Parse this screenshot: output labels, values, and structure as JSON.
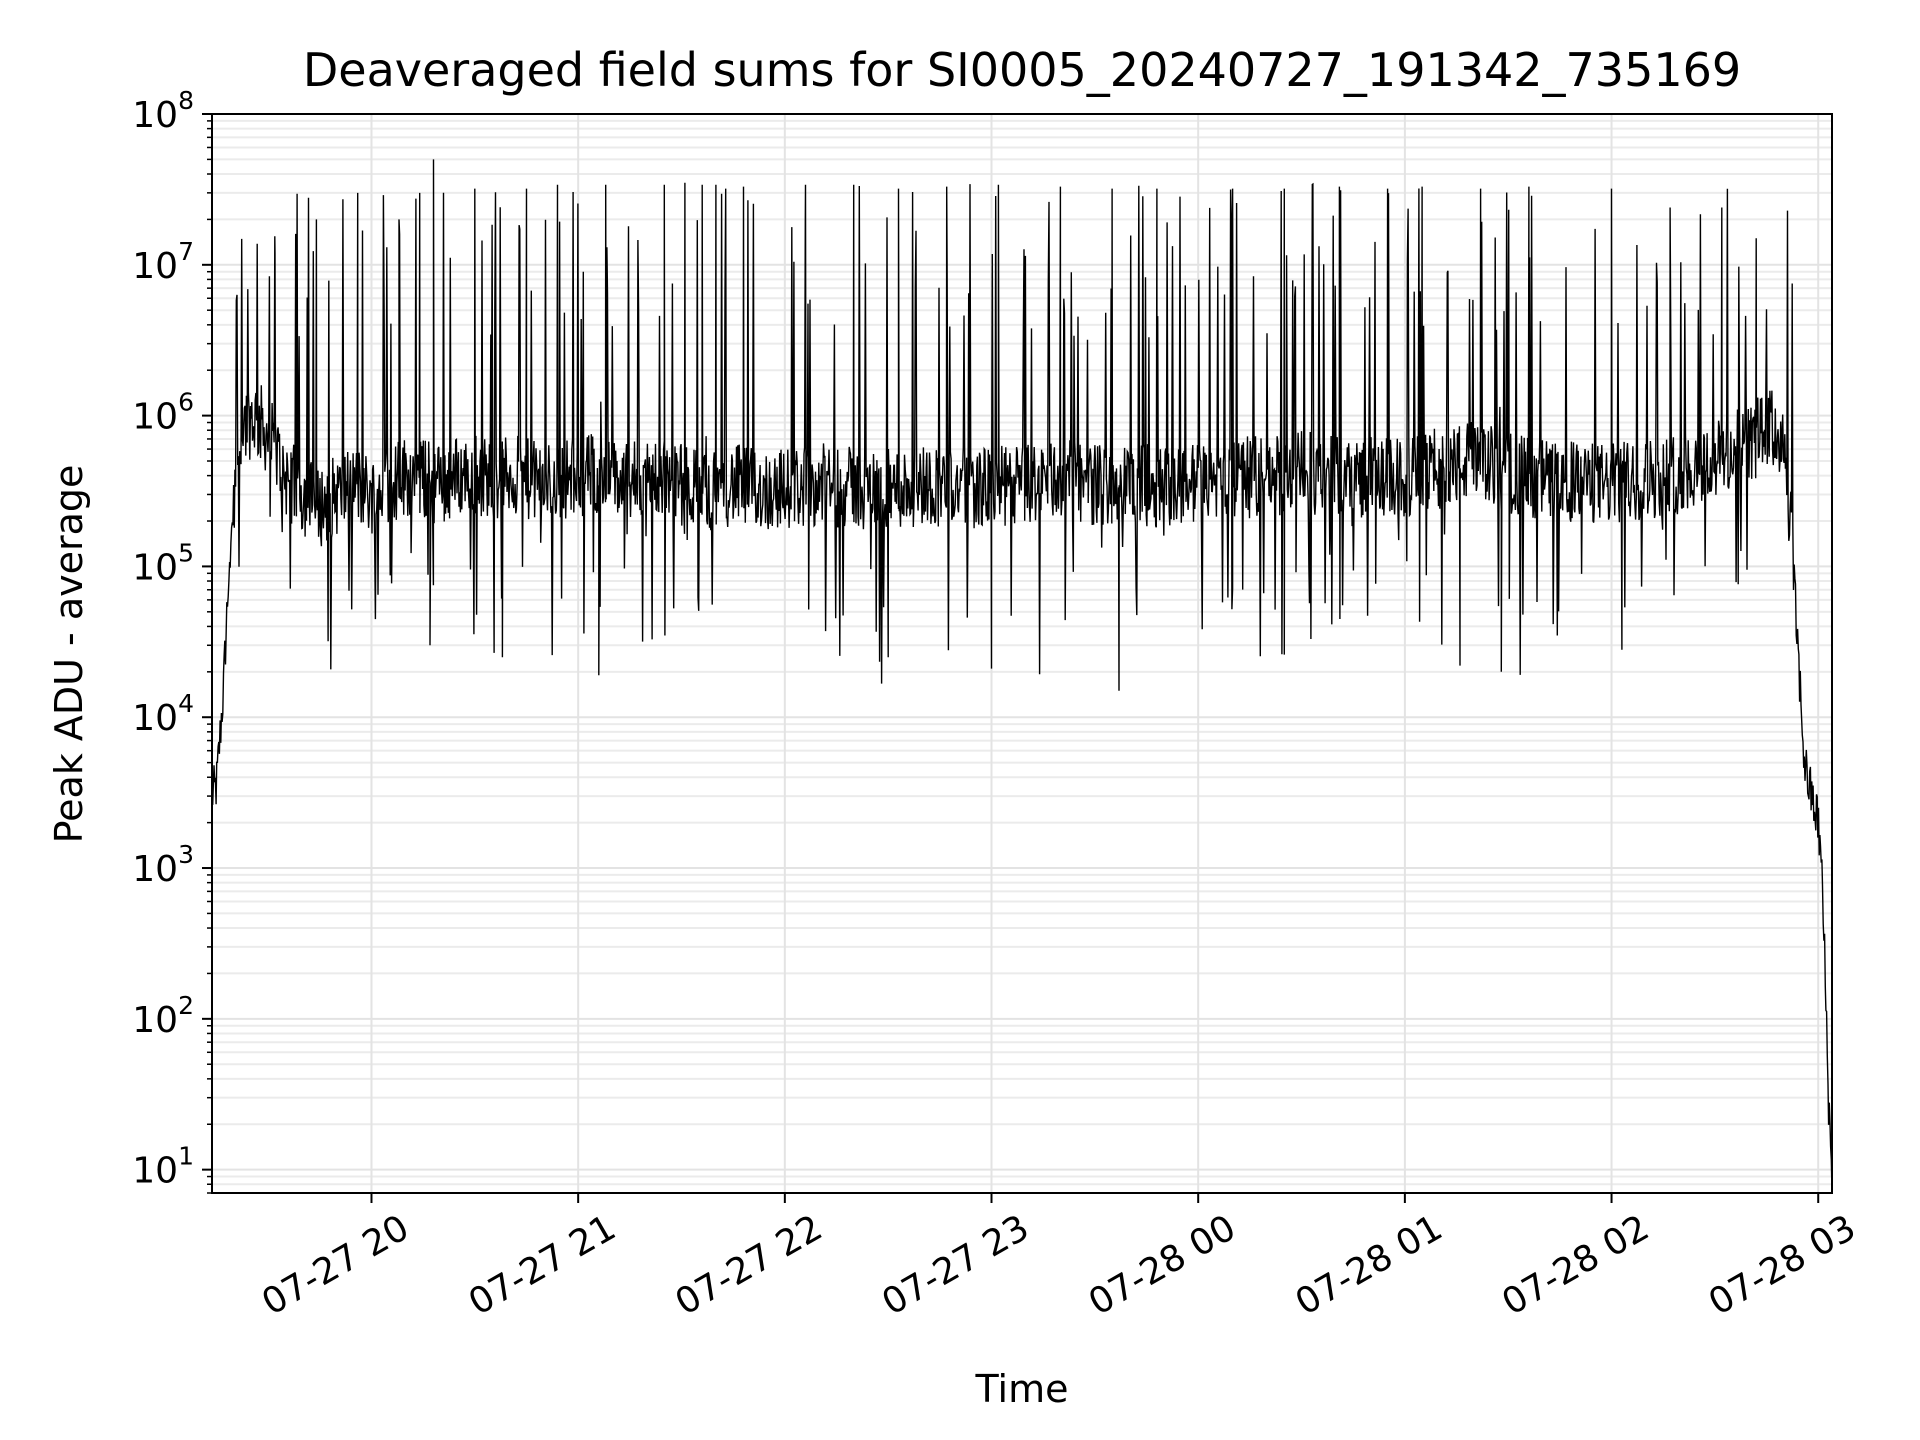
{
  "chart_data": {
    "type": "line",
    "title": "Deaveraged field sums for SI0005_20240727_191342_735169",
    "xlabel": "Time",
    "ylabel": "Peak ADU - average",
    "yscale": "log",
    "ylim": [
      7,
      100000000
    ],
    "xlim": [
      "2024-07-27 19:13:42",
      "2024-07-28 03:04:00"
    ],
    "grid": true,
    "legend": "none",
    "line_color": "#000000",
    "x_ticks": [
      {
        "value": "2024-07-27 20:00",
        "label": "07-27 20"
      },
      {
        "value": "2024-07-27 21:00",
        "label": "07-27 21"
      },
      {
        "value": "2024-07-27 22:00",
        "label": "07-27 22"
      },
      {
        "value": "2024-07-27 23:00",
        "label": "07-27 23"
      },
      {
        "value": "2024-07-28 00:00",
        "label": "07-28 00"
      },
      {
        "value": "2024-07-28 01:00",
        "label": "07-28 01"
      },
      {
        "value": "2024-07-28 02:00",
        "label": "07-28 02"
      },
      {
        "value": "2024-07-28 03:00",
        "label": "07-28 03"
      }
    ],
    "y_ticks": [
      {
        "value": 10,
        "base": "10",
        "exp": "1"
      },
      {
        "value": 100,
        "base": "10",
        "exp": "2"
      },
      {
        "value": 1000,
        "base": "10",
        "exp": "3"
      },
      {
        "value": 10000,
        "base": "10",
        "exp": "4"
      },
      {
        "value": 100000,
        "base": "10",
        "exp": "5"
      },
      {
        "value": 1000000,
        "base": "10",
        "exp": "6"
      },
      {
        "value": 10000000,
        "base": "10",
        "exp": "7"
      },
      {
        "value": 100000000,
        "base": "10",
        "exp": "8"
      }
    ],
    "series": [
      {
        "x": [
          "2024-07-27 19:13:42",
          "2024-07-27 19:15",
          "2024-07-27 19:17",
          "2024-07-27 19:19",
          "2024-07-27 19:21",
          "2024-07-27 19:23",
          "2024-07-27 19:26",
          "2024-07-27 19:29",
          "2024-07-27 19:32",
          "2024-07-27 19:35",
          "2024-07-27 19:40",
          "2024-07-27 19:45",
          "2024-07-27 19:50",
          "2024-07-27 19:55",
          "2024-07-27 20:00",
          "2024-07-27 20:05",
          "2024-07-27 20:10",
          "2024-07-27 20:15",
          "2024-07-27 20:20",
          "2024-07-27 20:25",
          "2024-07-27 20:30",
          "2024-07-27 20:35",
          "2024-07-27 20:40",
          "2024-07-27 20:45",
          "2024-07-27 20:50",
          "2024-07-27 20:55",
          "2024-07-27 21:00",
          "2024-07-27 21:05",
          "2024-07-27 21:10",
          "2024-07-27 21:15",
          "2024-07-27 21:20",
          "2024-07-27 21:25",
          "2024-07-27 21:30",
          "2024-07-27 21:35",
          "2024-07-27 21:40",
          "2024-07-27 21:45",
          "2024-07-27 21:50",
          "2024-07-27 21:55",
          "2024-07-27 22:00",
          "2024-07-27 22:10",
          "2024-07-27 22:20",
          "2024-07-27 22:30",
          "2024-07-27 22:40",
          "2024-07-27 22:50",
          "2024-07-27 23:00",
          "2024-07-27 23:10",
          "2024-07-27 23:20",
          "2024-07-27 23:30",
          "2024-07-27 23:40",
          "2024-07-27 23:50",
          "2024-07-28 00:00",
          "2024-07-28 00:10",
          "2024-07-28 00:20",
          "2024-07-28 00:30",
          "2024-07-28 00:40",
          "2024-07-28 00:50",
          "2024-07-28 01:00",
          "2024-07-28 01:10",
          "2024-07-28 01:20",
          "2024-07-28 01:30",
          "2024-07-28 01:40",
          "2024-07-28 01:50",
          "2024-07-28 02:00",
          "2024-07-28 02:10",
          "2024-07-28 02:20",
          "2024-07-28 02:30",
          "2024-07-28 02:40",
          "2024-07-28 02:45",
          "2024-07-28 02:48",
          "2024-07-28 02:50",
          "2024-07-28 02:52",
          "2024-07-28 02:54",
          "2024-07-28 02:56",
          "2024-07-28 02:58",
          "2024-07-28 03:00",
          "2024-07-28 03:01",
          "2024-07-28 03:02",
          "2024-07-28 03:03",
          "2024-07-28 03:04"
        ],
        "values": [
          3000,
          3500,
          15000,
          150000,
          500000,
          900000,
          1000000,
          800000,
          600000,
          400000,
          300000,
          250000,
          300000,
          350000,
          300000,
          350000,
          400000,
          380000,
          350000,
          400000,
          420000,
          380000,
          400000,
          380000,
          350000,
          380000,
          400000,
          420000,
          380000,
          350000,
          400000,
          380000,
          350000,
          330000,
          320000,
          350000,
          330000,
          320000,
          330000,
          350000,
          330000,
          320000,
          350000,
          340000,
          330000,
          350000,
          380000,
          350000,
          350000,
          340000,
          360000,
          380000,
          400000,
          420000,
          400000,
          390000,
          380000,
          450000,
          500000,
          420000,
          380000,
          360000,
          350000,
          380000,
          420000,
          500000,
          650000,
          800000,
          800000,
          500000,
          200000,
          30000,
          5000,
          3000,
          2000,
          1000,
          200,
          30,
          8
        ],
        "peaks": [
          [
            "2024-07-27 19:32",
            12000000
          ],
          [
            "2024-07-27 19:38",
            8000000
          ],
          [
            "2024-07-27 19:44",
            20000000
          ],
          [
            "2024-07-27 19:56",
            30000000
          ],
          [
            "2024-07-27 20:08",
            20000000
          ],
          [
            "2024-07-27 20:14",
            30000000
          ],
          [
            "2024-07-27 20:18",
            50000000
          ],
          [
            "2024-07-27 20:30",
            32000000
          ],
          [
            "2024-07-27 20:45",
            32000000
          ],
          [
            "2024-07-27 20:54",
            34000000
          ],
          [
            "2024-07-27 21:08",
            34000000
          ],
          [
            "2024-07-27 21:25",
            34000000
          ],
          [
            "2024-07-27 21:31",
            35000000
          ],
          [
            "2024-07-27 21:36",
            34000000
          ],
          [
            "2024-07-27 21:40",
            34000000
          ],
          [
            "2024-07-27 21:48",
            33000000
          ],
          [
            "2024-07-27 22:06",
            34000000
          ],
          [
            "2024-07-27 22:20",
            34000000
          ],
          [
            "2024-07-27 22:33",
            32000000
          ],
          [
            "2024-07-27 22:47",
            33000000
          ],
          [
            "2024-07-27 23:02",
            34000000
          ],
          [
            "2024-07-27 23:20",
            33000000
          ],
          [
            "2024-07-27 23:35",
            32000000
          ],
          [
            "2024-07-27 23:48",
            32000000
          ],
          [
            "2024-07-28 00:10",
            32000000
          ],
          [
            "2024-07-28 00:25",
            32000000
          ],
          [
            "2024-07-28 00:41",
            33000000
          ],
          [
            "2024-07-28 00:55",
            32000000
          ],
          [
            "2024-07-28 01:05",
            33000000
          ],
          [
            "2024-07-28 01:22",
            32000000
          ],
          [
            "2024-07-28 01:36",
            33000000
          ],
          [
            "2024-07-28 02:00",
            32000000
          ],
          [
            "2024-07-28 02:17",
            24000000
          ],
          [
            "2024-07-28 02:32",
            24000000
          ],
          [
            "2024-07-28 02:42",
            15000000
          ]
        ],
        "dips": [
          [
            "2024-07-27 20:17",
            30000
          ],
          [
            "2024-07-27 20:38",
            25000
          ],
          [
            "2024-07-27 21:06",
            19000
          ],
          [
            "2024-07-27 22:30",
            25000
          ],
          [
            "2024-07-27 23:00",
            21000
          ],
          [
            "2024-07-27 23:37",
            15000
          ],
          [
            "2024-07-28 00:25",
            26000
          ],
          [
            "2024-07-28 01:16",
            22000
          ],
          [
            "2024-07-28 01:28",
            20000
          ],
          [
            "2024-07-28 02:03",
            28000
          ]
        ]
      }
    ]
  }
}
